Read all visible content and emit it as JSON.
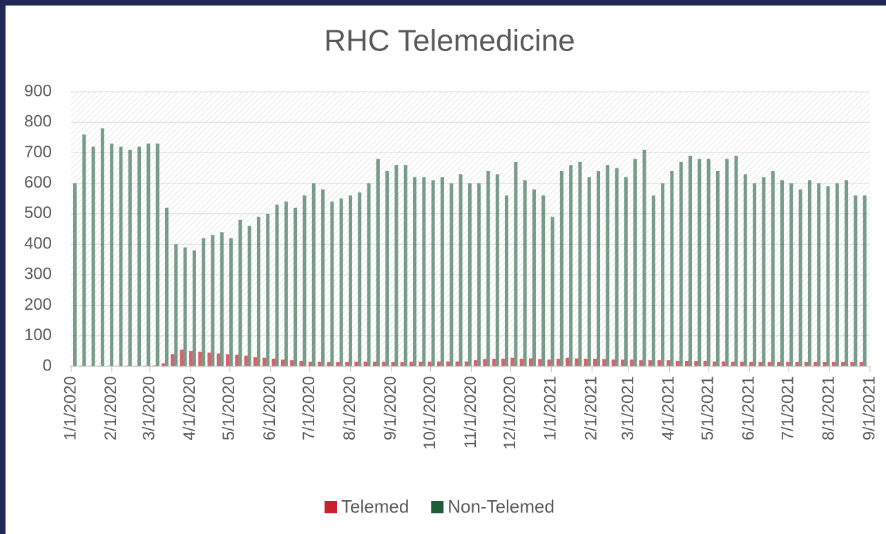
{
  "chart_data": {
    "type": "bar",
    "title": "RHC Telemedicine",
    "x": [
      0,
      7,
      14,
      21,
      28,
      35,
      42,
      49,
      56,
      63,
      70,
      77,
      84,
      91,
      98,
      105,
      112,
      119,
      126,
      133,
      140,
      147,
      154,
      161,
      168,
      175,
      182,
      189,
      196,
      203,
      210,
      217,
      224,
      231,
      238,
      245,
      252,
      259,
      266,
      273,
      280,
      287,
      294,
      301,
      308,
      315,
      322,
      329,
      336,
      343,
      350,
      357,
      364,
      371,
      378,
      385,
      392,
      399,
      406,
      413,
      420,
      427,
      434,
      441,
      448,
      455,
      462,
      469,
      476,
      483,
      490,
      497,
      504,
      511,
      518,
      525,
      532,
      539,
      546,
      553,
      560,
      567,
      574,
      581,
      588,
      595,
      602
    ],
    "series": [
      {
        "name": "Telemed",
        "color": "#c8202f",
        "values": [
          2,
          2,
          2,
          2,
          2,
          2,
          2,
          2,
          2,
          3,
          10,
          40,
          55,
          50,
          48,
          45,
          42,
          40,
          38,
          35,
          30,
          28,
          25,
          22,
          20,
          18,
          15,
          15,
          14,
          14,
          14,
          15,
          15,
          15,
          15,
          14,
          14,
          15,
          15,
          15,
          16,
          16,
          16,
          16,
          20,
          24,
          25,
          25,
          28,
          25,
          26,
          24,
          22,
          25,
          28,
          26,
          25,
          25,
          24,
          22,
          22,
          22,
          20,
          20,
          20,
          20,
          18,
          18,
          18,
          18,
          16,
          16,
          15,
          15,
          14,
          14,
          14,
          14,
          14,
          14,
          14,
          14,
          14,
          14,
          14,
          14,
          14
        ]
      },
      {
        "name": "Non-Telemed",
        "color": "#1e5c3a",
        "values": [
          600,
          760,
          720,
          780,
          730,
          720,
          710,
          720,
          730,
          730,
          520,
          400,
          390,
          380,
          420,
          430,
          440,
          420,
          480,
          460,
          490,
          500,
          530,
          540,
          520,
          560,
          600,
          580,
          540,
          550,
          560,
          570,
          600,
          680,
          640,
          660,
          660,
          620,
          620,
          610,
          620,
          600,
          630,
          600,
          600,
          640,
          630,
          560,
          670,
          610,
          580,
          560,
          490,
          640,
          660,
          670,
          620,
          640,
          660,
          650,
          620,
          680,
          710,
          560,
          600,
          640,
          670,
          690,
          680,
          680,
          640,
          680,
          690,
          630,
          600,
          620,
          640,
          610,
          600,
          580,
          610,
          600,
          590,
          600,
          610,
          560,
          560
        ]
      }
    ],
    "xlim": [
      0,
      609
    ],
    "xticks": [
      {
        "value": 0,
        "label": "1/1/2020"
      },
      {
        "value": 31,
        "label": "2/1/2020"
      },
      {
        "value": 60,
        "label": "3/1/2020"
      },
      {
        "value": 91,
        "label": "4/1/2020"
      },
      {
        "value": 121,
        "label": "5/1/2020"
      },
      {
        "value": 152,
        "label": "6/1/2020"
      },
      {
        "value": 182,
        "label": "7/1/2020"
      },
      {
        "value": 213,
        "label": "8/1/2020"
      },
      {
        "value": 244,
        "label": "9/1/2020"
      },
      {
        "value": 274,
        "label": "10/1/2020"
      },
      {
        "value": 305,
        "label": "11/1/2020"
      },
      {
        "value": 335,
        "label": "12/1/2020"
      },
      {
        "value": 366,
        "label": "1/1/2021"
      },
      {
        "value": 397,
        "label": "2/1/2021"
      },
      {
        "value": 425,
        "label": "3/1/2021"
      },
      {
        "value": 456,
        "label": "4/1/2021"
      },
      {
        "value": 486,
        "label": "5/1/2021"
      },
      {
        "value": 517,
        "label": "6/1/2021"
      },
      {
        "value": 547,
        "label": "7/1/2021"
      },
      {
        "value": 578,
        "label": "8/1/2021"
      },
      {
        "value": 609,
        "label": "9/1/2021"
      }
    ],
    "ylim": [
      0,
      900
    ],
    "yticks": [
      0,
      100,
      200,
      300,
      400,
      500,
      600,
      700,
      800,
      900
    ],
    "grid": true,
    "legend": "bottom"
  }
}
